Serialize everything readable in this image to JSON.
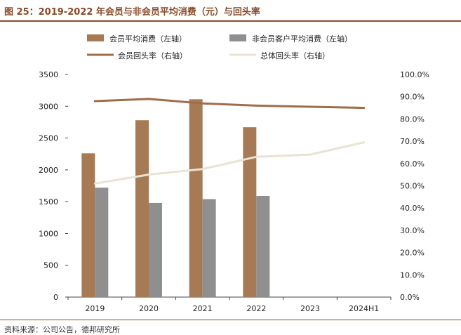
{
  "figure": {
    "title": "图 25：2019-2022 年会员与非会员平均消费（元）与回头率",
    "source": "资料来源：公司公告，德邦研究所"
  },
  "colors": {
    "brand": "#8B4A2A",
    "member_spend": "#A57A55",
    "nonmember_spend": "#8F8F8F",
    "member_return": "#A06C4A",
    "overall_return": "#E8E3D2"
  },
  "chart_data": {
    "type": "bar",
    "categories": [
      "2019",
      "2020",
      "2021",
      "2022",
      "2023",
      "2024H1"
    ],
    "series": [
      {
        "name": "会员平均消费（左轴）",
        "kind": "bar",
        "axis": "left",
        "values": [
          2260,
          2780,
          3110,
          2670,
          null,
          null
        ]
      },
      {
        "name": "非会员客户平均消费（左轴）",
        "kind": "bar",
        "axis": "left",
        "values": [
          1720,
          1480,
          1540,
          1590,
          null,
          null
        ]
      },
      {
        "name": "会员回头率（右轴）",
        "kind": "line",
        "axis": "right",
        "values": [
          88.0,
          89.0,
          87.0,
          86.0,
          85.5,
          85.0
        ]
      },
      {
        "name": "总体回头率（右轴）",
        "kind": "line",
        "axis": "right",
        "values": [
          51.0,
          55.0,
          57.5,
          63.0,
          64.0,
          69.5
        ]
      }
    ],
    "y_left": {
      "min": 0,
      "max": 3500,
      "step": 500,
      "ticks": [
        "0",
        "500",
        "1000",
        "1500",
        "2000",
        "2500",
        "3000",
        "3500"
      ]
    },
    "y_right": {
      "min": 0,
      "max": 100,
      "step": 10,
      "ticks": [
        "0.0%",
        "10.0%",
        "20.0%",
        "30.0%",
        "40.0%",
        "50.0%",
        "60.0%",
        "70.0%",
        "80.0%",
        "90.0%",
        "100.0%"
      ]
    },
    "grid": false,
    "legend_position": "top"
  }
}
